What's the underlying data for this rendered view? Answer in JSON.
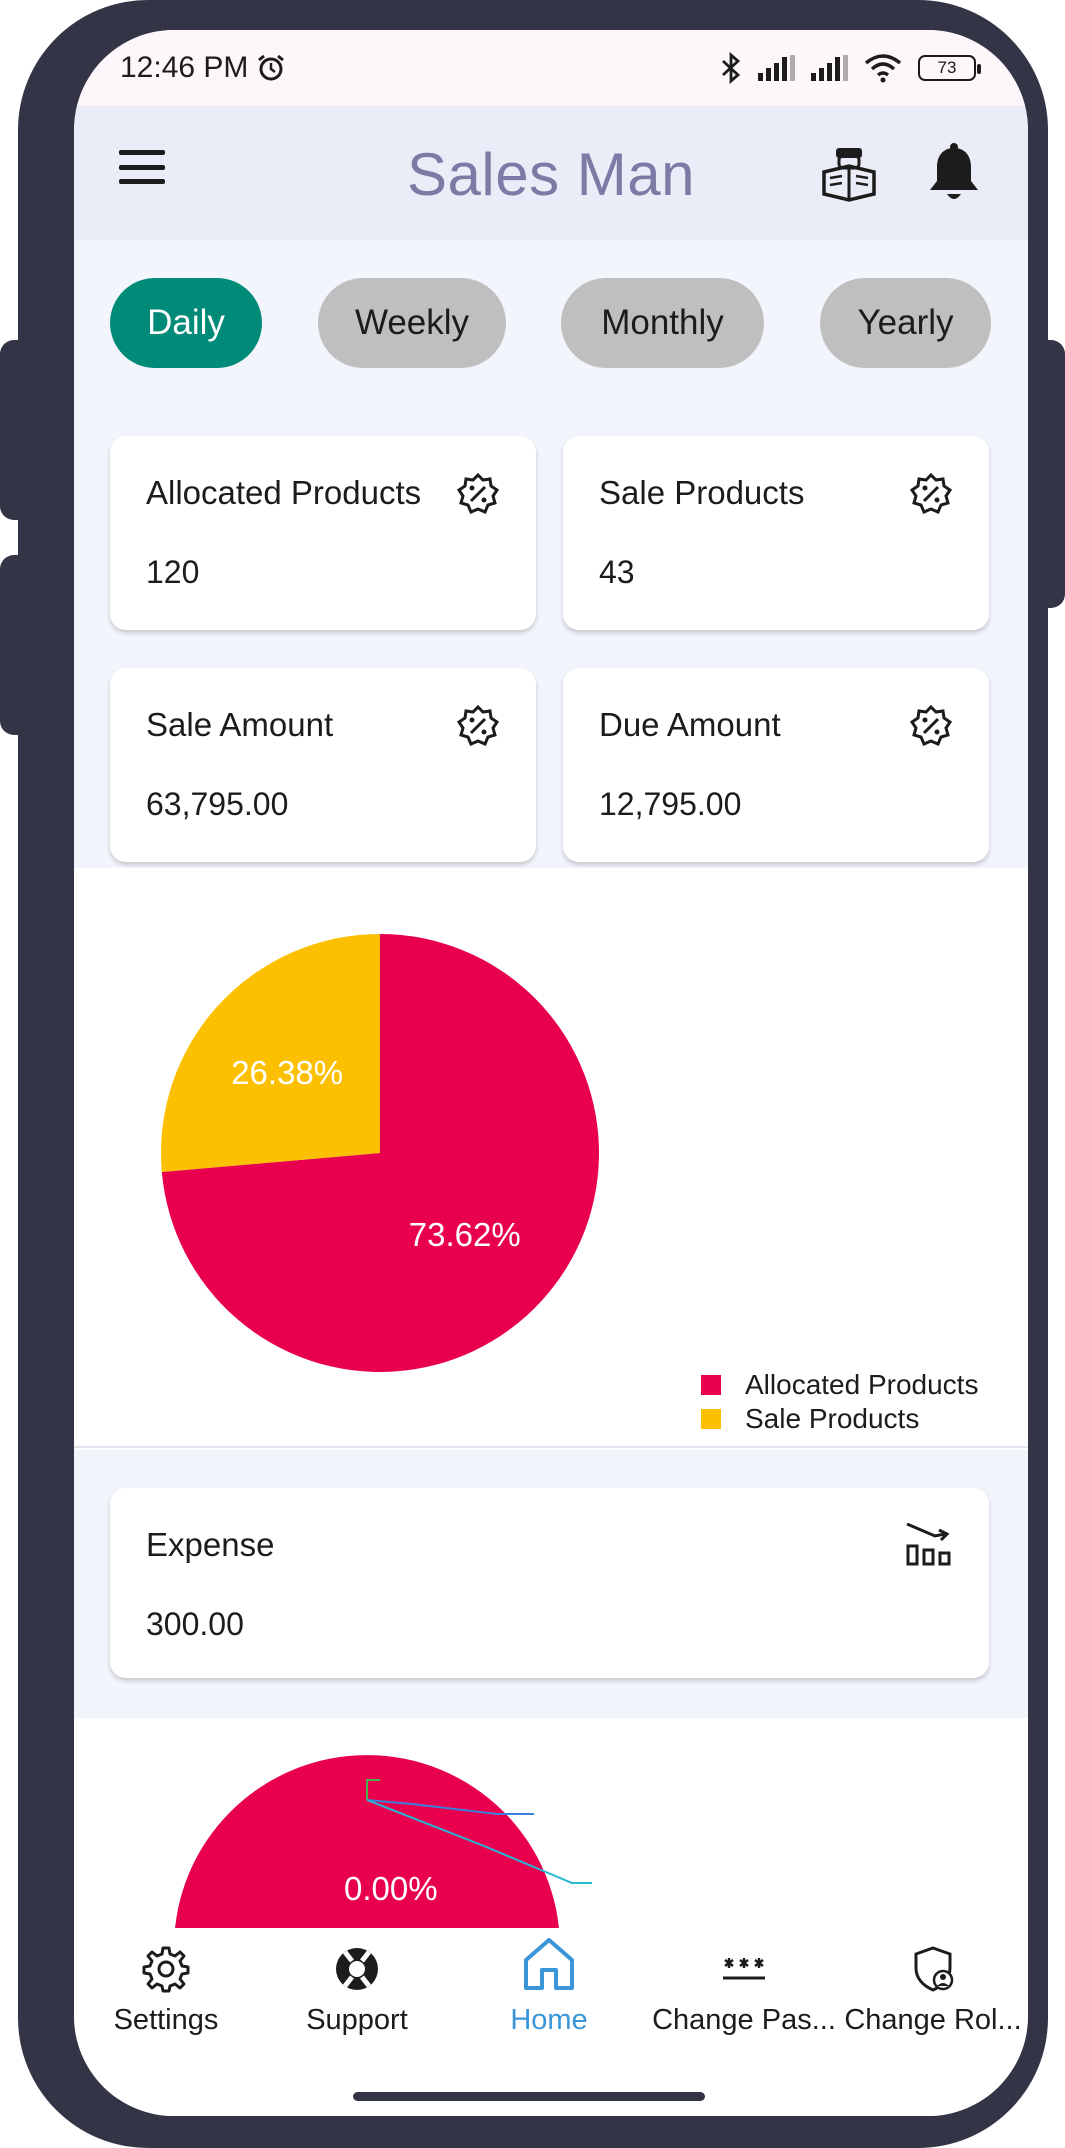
{
  "status_bar": {
    "time": "12:46 PM",
    "battery": "73",
    "icons": [
      "alarm-icon",
      "bluetooth-icon",
      "signal-icon",
      "signal-icon",
      "wifi-icon",
      "battery-icon"
    ]
  },
  "app_bar": {
    "title": "Sales Man",
    "title_color": "#7b7ba6",
    "icons": [
      "menu-icon",
      "book-reader-icon",
      "bell-icon"
    ]
  },
  "period_tabs": [
    {
      "label": "Daily",
      "active": true
    },
    {
      "label": "Weekly",
      "active": false
    },
    {
      "label": "Monthly",
      "active": false
    },
    {
      "label": "Yearly",
      "active": false
    }
  ],
  "summary_cards": [
    {
      "label": "Allocated Products",
      "value": "120",
      "icon": "discount-badge-icon"
    },
    {
      "label": "Sale Products",
      "value": "43",
      "icon": "discount-badge-icon"
    },
    {
      "label": "Sale Amount",
      "value": "63,795.00",
      "icon": "discount-badge-icon"
    },
    {
      "label": "Due Amount",
      "value": "12,795.00",
      "icon": "discount-badge-icon"
    }
  ],
  "chart_data": [
    {
      "type": "pie",
      "series": [
        {
          "name": "Allocated Products",
          "value": 73.62,
          "label": "73.62%",
          "color": "#e8004f"
        },
        {
          "name": "Sale Products",
          "value": 26.38,
          "label": "26.38%",
          "color": "#fdc000"
        }
      ],
      "legend": "bottom-right"
    },
    {
      "type": "pie",
      "series": [
        {
          "value": 0.0,
          "label": "0.00%",
          "color": "#e8004f"
        }
      ]
    }
  ],
  "expense_card": {
    "label": "Expense",
    "value": "300.00",
    "icon": "trending-down-chart-icon"
  },
  "bottom_nav": [
    {
      "label": "Settings",
      "icon": "gear-icon",
      "active": false
    },
    {
      "label": "Support",
      "icon": "lifebuoy-icon",
      "active": false
    },
    {
      "label": "Home",
      "icon": "home-icon",
      "active": true
    },
    {
      "label": "Change Pas...",
      "icon": "password-icon",
      "active": false
    },
    {
      "label": "Change Rol...",
      "icon": "shield-user-icon",
      "active": false
    }
  ],
  "colors": {
    "active_tab": "#008a78",
    "inactive_tab": "#bfbfbf",
    "active_nav": "#3a96d8",
    "frame": "#343447"
  }
}
